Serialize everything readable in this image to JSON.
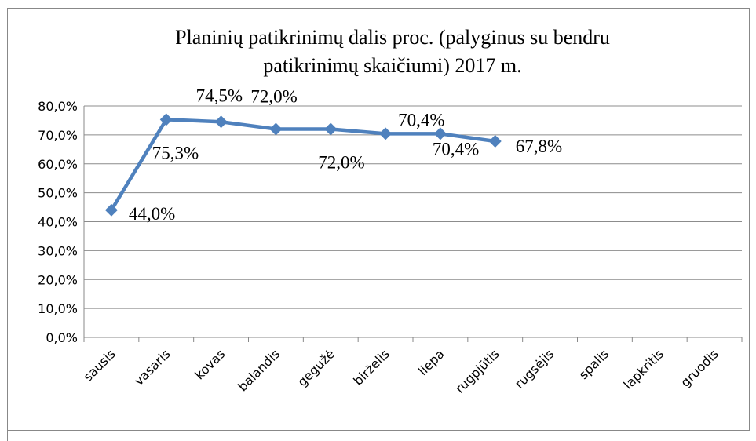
{
  "chart_data": {
    "type": "line",
    "title": [
      "Planinių  patikrinimų  dalis proc. (palyginus  su bendru",
      "patikrinimų  skaičiumi)  2017 m."
    ],
    "categories": [
      "sausis",
      "vasaris",
      "kovas",
      "balandis",
      "gegužė",
      "birželis",
      "liepa",
      "rugpjūtis",
      "rugsėjis",
      "spalis",
      "lapkritis",
      "gruodis"
    ],
    "series": [
      {
        "name": "Planinių patikrinimų dalis",
        "color": "#4f81bd",
        "values": [
          44.0,
          75.3,
          74.5,
          72.0,
          72.0,
          70.4,
          70.4,
          67.8,
          null,
          null,
          null,
          null
        ],
        "value_labels": [
          "44,0%",
          "75,3%",
          "74,5%",
          "72,0%",
          "72,0%",
          "70,4%",
          "70,4%",
          "67,8%",
          null,
          null,
          null,
          null
        ]
      }
    ],
    "ylim": [
      0,
      80
    ],
    "yticks": [
      {
        "value": 0,
        "label": "0,0%"
      },
      {
        "value": 10,
        "label": "10,0%"
      },
      {
        "value": 20,
        "label": "20,0%"
      },
      {
        "value": 30,
        "label": "30,0%"
      },
      {
        "value": 40,
        "label": "40,0%"
      },
      {
        "value": 50,
        "label": "50,0%"
      },
      {
        "value": 60,
        "label": "60,0%"
      },
      {
        "value": 70,
        "label": "70,0%"
      },
      {
        "value": 80,
        "label": "80,0%"
      }
    ],
    "grid": true
  }
}
